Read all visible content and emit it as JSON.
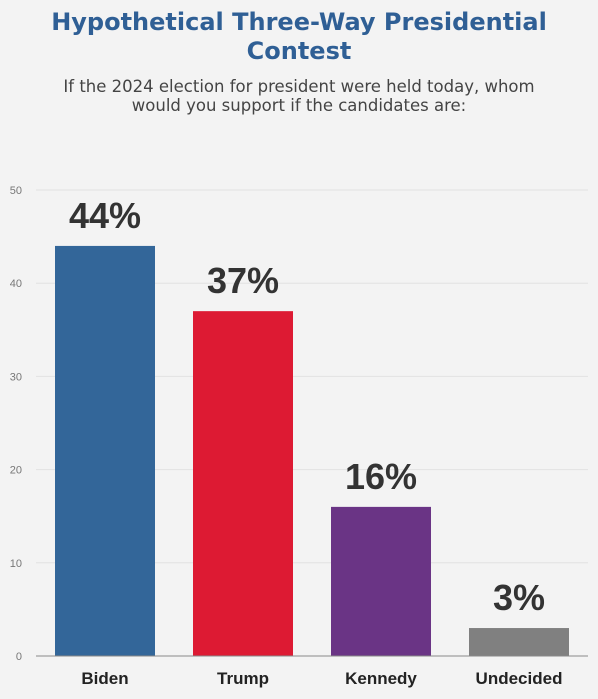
{
  "chart_data": {
    "type": "bar",
    "title_lines": [
      "Hypothetical Three-Way Presidential",
      "Contest"
    ],
    "subtitle_lines": [
      "If the 2024 election for president were held today, whom",
      "would you support if the candidates are:"
    ],
    "categories": [
      "Biden",
      "Trump",
      "Kennedy",
      "Undecided"
    ],
    "values": [
      44,
      37,
      16,
      3
    ],
    "data_labels": [
      "44%",
      "37%",
      "16%",
      "3%"
    ],
    "colors": [
      "#336699",
      "#dd1a33",
      "#6a3485",
      "#808080"
    ],
    "yticks": [
      "0",
      "10",
      "20",
      "30",
      "40",
      "50"
    ],
    "ylim": [
      0,
      50
    ],
    "grid": true,
    "legend": "none"
  }
}
